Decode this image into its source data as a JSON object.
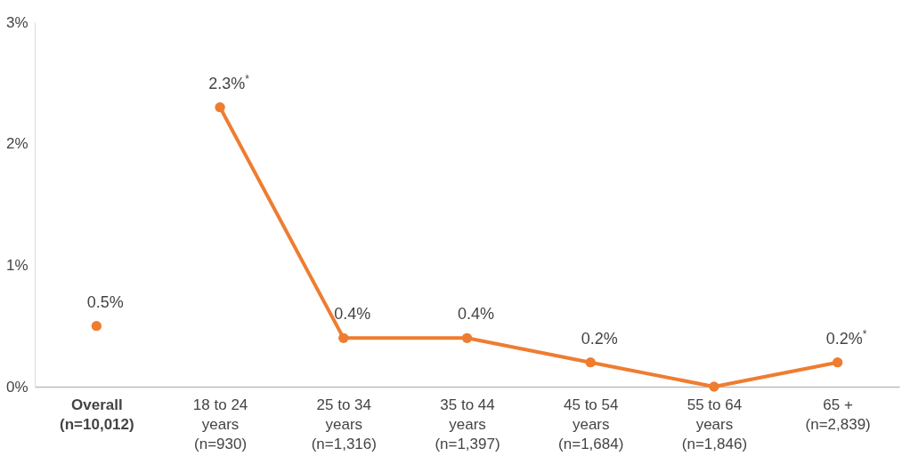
{
  "chart_data": {
    "type": "line",
    "categories": [
      "Overall (n=10,012)",
      "18 to 24 years (n=930)",
      "25 to 34 years (n=1,316)",
      "35 to 44 years (n=1,397)",
      "45 to 54 years (n=1,684)",
      "55 to 64 years (n=1,846)",
      "65 + (n=2,839)"
    ],
    "series": [
      {
        "type": "scatter",
        "color": "#ee7d31",
        "values": [
          0.5,
          null,
          null,
          null,
          null,
          null,
          null
        ],
        "value_labels": [
          "0.5%",
          null,
          null,
          null,
          null,
          null,
          null
        ]
      },
      {
        "color": "#ee7d31",
        "values": [
          null,
          2.3,
          0.4,
          0.4,
          0.2,
          0,
          0.2
        ],
        "value_labels": [
          null,
          "2.3%$^{*}$",
          "0.4%",
          "0.4%",
          "0.2%",
          null,
          "0.2%$^{*}$"
        ]
      }
    ],
    "ylim": [
      0,
      3
    ],
    "yticks": [
      {
        "value": 0,
        "label": "0%"
      },
      {
        "value": 1,
        "label": "1%"
      },
      {
        "value": 2,
        "label": "2%"
      },
      {
        "value": 3,
        "label": "3%"
      }
    ],
    "grid": false,
    "marker": "circle"
  }
}
